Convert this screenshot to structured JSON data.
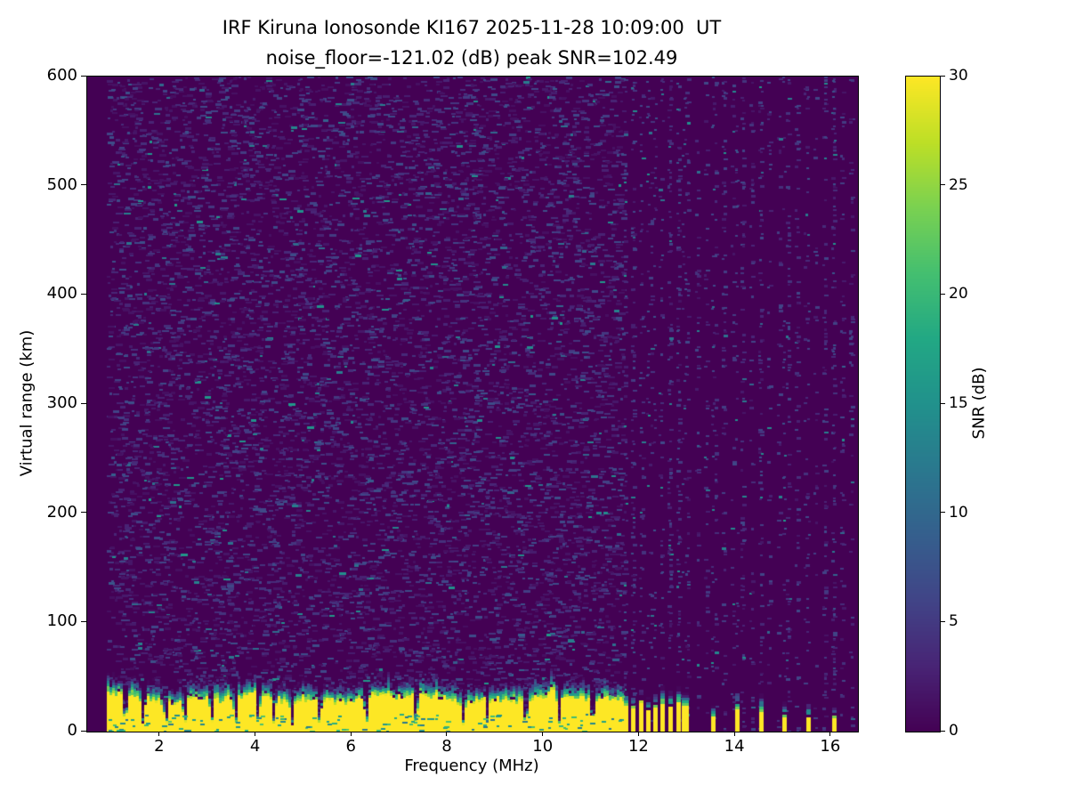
{
  "figure": {
    "title_line1": "IRF Kiruna Ionosonde KI167 2025-11-28 10:09:00  UT",
    "title_line2": "noise_floor=-121.02 (dB) peak SNR=102.49"
  },
  "chart_data": {
    "type": "heatmap",
    "title": "IRF Kiruna Ionosonde KI167 2025-11-28 10:09:00  UT",
    "subtitle": "noise_floor=-121.02 (dB) peak SNR=102.49",
    "xlabel": "Frequency (MHz)",
    "ylabel": "Virtual range (km)",
    "colorbar_label": "SNR (dB)",
    "colormap": "viridis",
    "xlim": [
      0.48,
      16.56
    ],
    "ylim": [
      0,
      600
    ],
    "clim": [
      0,
      30
    ],
    "x_ticks": [
      2,
      4,
      6,
      8,
      10,
      12,
      14,
      16
    ],
    "y_ticks": [
      0,
      100,
      200,
      300,
      400,
      500,
      600
    ],
    "colorbar_ticks": [
      0,
      5,
      10,
      15,
      20,
      25,
      30
    ],
    "noise_floor_db": -121.02,
    "peak_snr_db": 102.49,
    "grid": false,
    "legend": "colorbar-right",
    "features": {
      "data_freq_start_mhz": 0.9,
      "continuous_band_end_mhz": 11.65,
      "ground_echo_top_km_mean": 31,
      "ground_echo_top_km_left_boost": 9,
      "ground_echo_transition_km": 14,
      "ground_echo_snr_db": 30,
      "background_snr_db": 0,
      "noise_speckle_snr_db_range": [
        1,
        14
      ],
      "notch_freqs_mhz": [
        1.25,
        1.62,
        2.1,
        2.49,
        3.05,
        3.55,
        4.02,
        4.35,
        4.73,
        5.3,
        6.28,
        7.31,
        8.3,
        8.8,
        9.6,
        10.3,
        11.0
      ],
      "stripe_freqs_mhz": [
        11.74,
        11.89,
        12.04,
        12.19,
        12.35,
        12.5,
        12.66,
        12.82,
        12.97,
        13.55,
        14.05,
        14.55,
        15.04,
        15.54,
        16.08
      ],
      "stripe_cluster_max_mhz": 13.2,
      "speckle_column_start_mhz": 11.68,
      "speckle_column_step_mhz": 0.19,
      "speckle_column_end_mhz": 16.45,
      "noise_seed": 167
    },
    "colormap_stops": [
      "#440154",
      "#482475",
      "#414487",
      "#355f8d",
      "#2a788e",
      "#21918c",
      "#22a884",
      "#44bf70",
      "#7ad151",
      "#bddf26",
      "#fde725"
    ]
  }
}
